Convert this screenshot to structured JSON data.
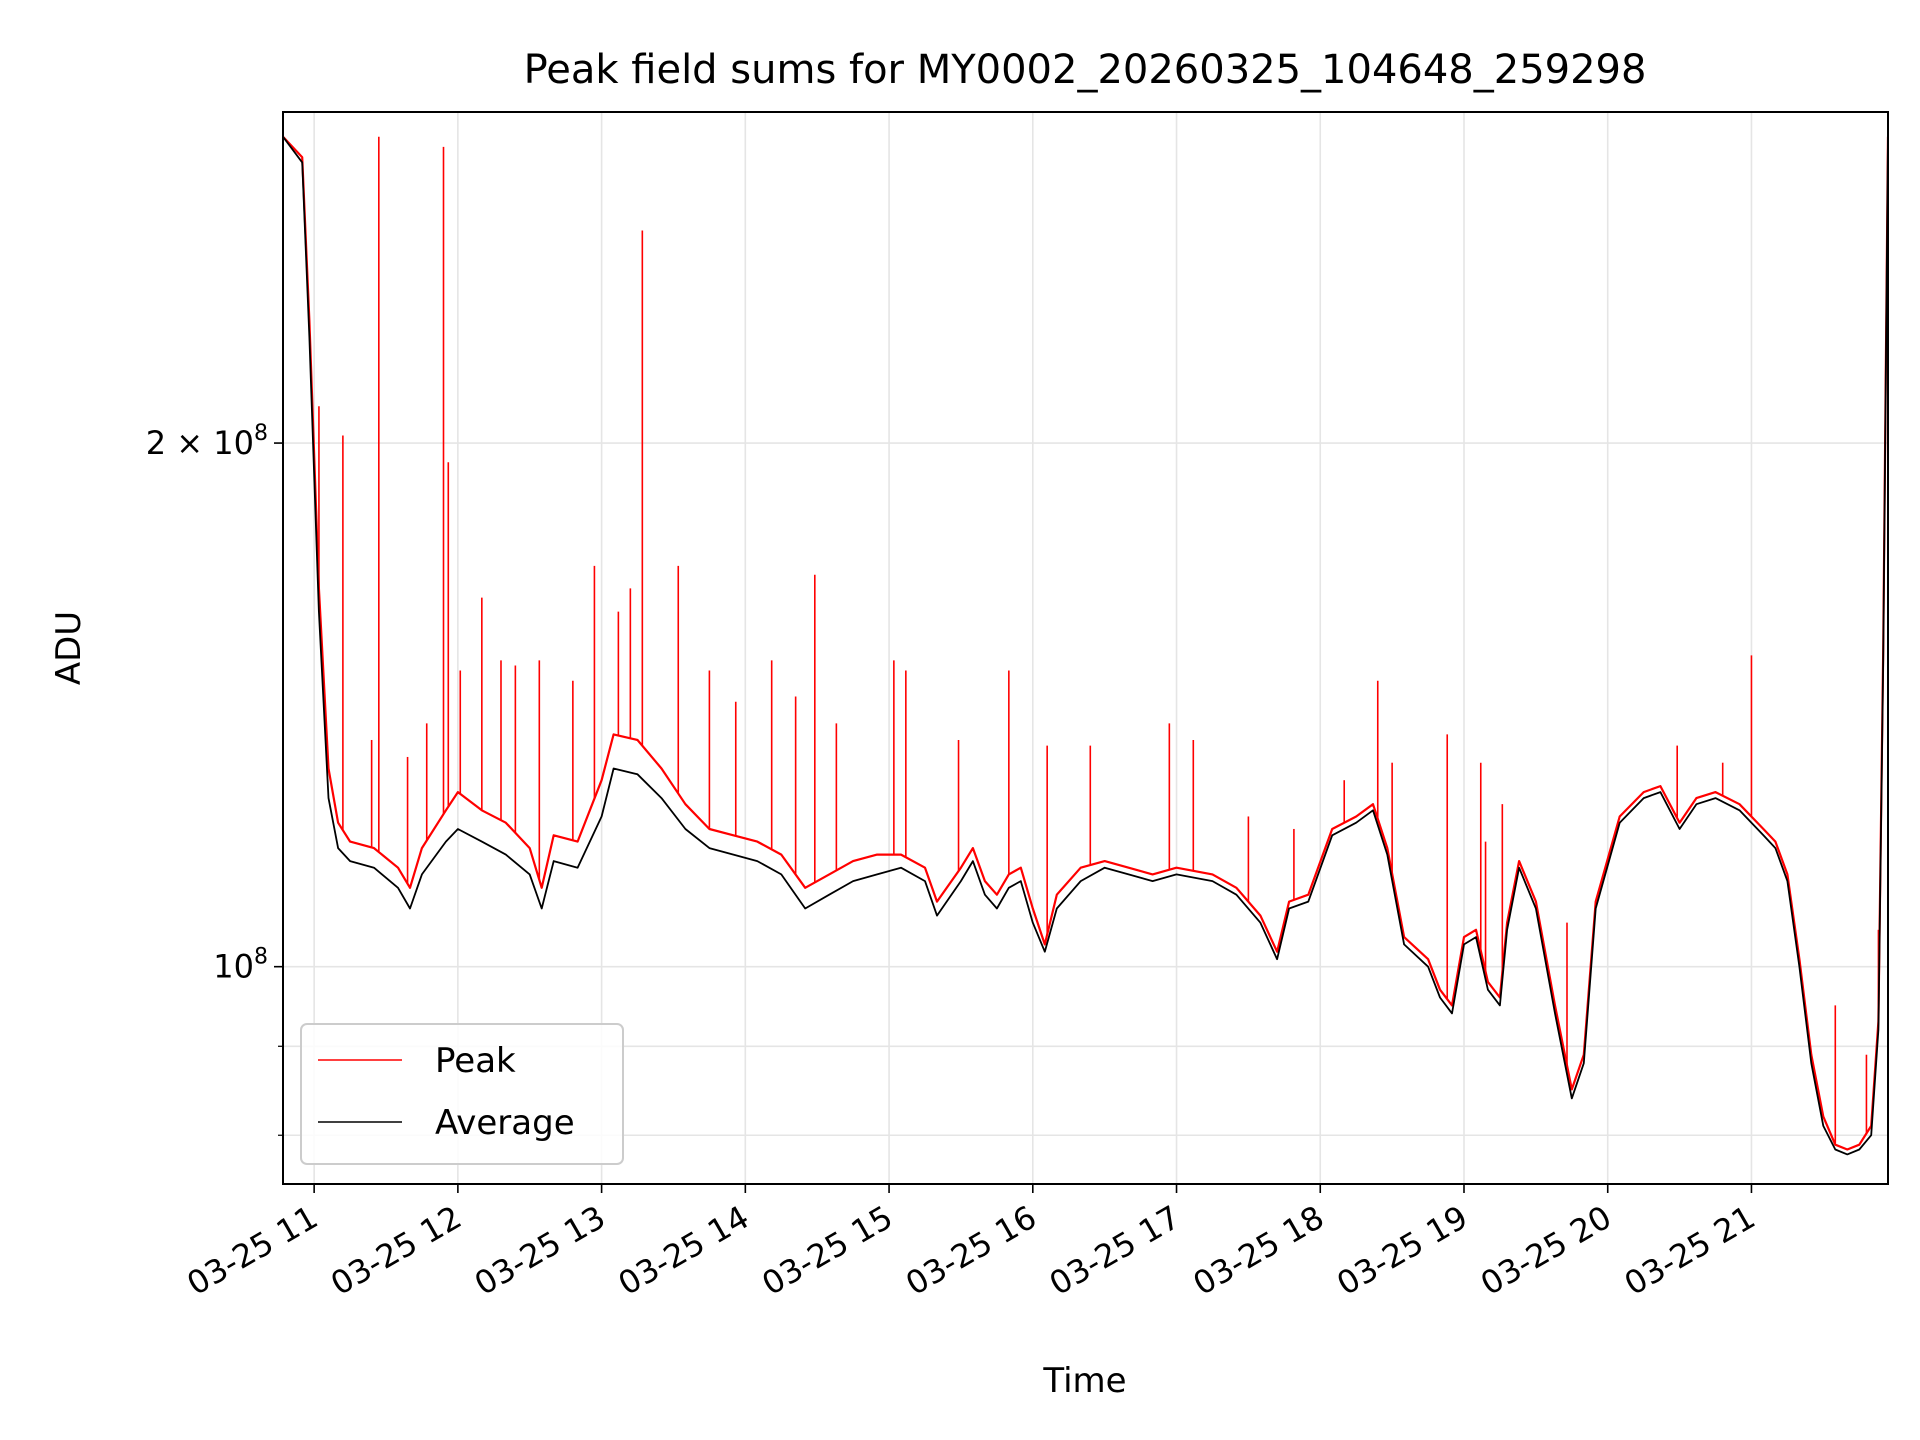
{
  "chart_data": {
    "type": "line",
    "title": "Peak field sums for MY0002_20260325_104648_259298",
    "xlabel": "Time",
    "ylabel": "ADU",
    "y_scale": "log",
    "ylim": [
      75000000,
      310000000
    ],
    "xlim": [
      "03-25 10:47",
      "03-25 21:57"
    ],
    "grid": true,
    "legend_position": "lower-left",
    "x_ticks": [
      {
        "t": "03-25 11:00",
        "label": "03-25 11"
      },
      {
        "t": "03-25 12:00",
        "label": "03-25 12"
      },
      {
        "t": "03-25 13:00",
        "label": "03-25 13"
      },
      {
        "t": "03-25 14:00",
        "label": "03-25 14"
      },
      {
        "t": "03-25 15:00",
        "label": "03-25 15"
      },
      {
        "t": "03-25 16:00",
        "label": "03-25 16"
      },
      {
        "t": "03-25 17:00",
        "label": "03-25 17"
      },
      {
        "t": "03-25 18:00",
        "label": "03-25 18"
      },
      {
        "t": "03-25 19:00",
        "label": "03-25 19"
      },
      {
        "t": "03-25 20:00",
        "label": "03-25 20"
      },
      {
        "t": "03-25 21:00",
        "label": "03-25 21"
      }
    ],
    "y_ticks": [
      {
        "v": 200000000,
        "label": "2 × 10",
        "exp": "8"
      },
      {
        "v": 100000000,
        "label": "10",
        "exp": "8"
      }
    ],
    "y_minor_ticks": [
      80000000,
      90000000
    ],
    "series": [
      {
        "name": "Average",
        "color": "#000000",
        "points": [
          [
            "03-25 10:47",
            300000000
          ],
          [
            "03-25 10:55",
            290000000
          ],
          [
            "03-25 10:58",
            230000000
          ],
          [
            "03-25 11:02",
            160000000
          ],
          [
            "03-25 11:06",
            125000000
          ],
          [
            "03-25 11:10",
            117000000
          ],
          [
            "03-25 11:15",
            115000000
          ],
          [
            "03-25 11:25",
            114000000
          ],
          [
            "03-25 11:35",
            111000000
          ],
          [
            "03-25 11:40",
            108000000
          ],
          [
            "03-25 11:45",
            113000000
          ],
          [
            "03-25 11:55",
            118000000
          ],
          [
            "03-25 12:00",
            120000000
          ],
          [
            "03-25 12:10",
            118000000
          ],
          [
            "03-25 12:20",
            116000000
          ],
          [
            "03-25 12:30",
            113000000
          ],
          [
            "03-25 12:35",
            108000000
          ],
          [
            "03-25 12:40",
            115000000
          ],
          [
            "03-25 12:50",
            114000000
          ],
          [
            "03-25 13:00",
            122000000
          ],
          [
            "03-25 13:05",
            130000000
          ],
          [
            "03-25 13:15",
            129000000
          ],
          [
            "03-25 13:25",
            125000000
          ],
          [
            "03-25 13:35",
            120000000
          ],
          [
            "03-25 13:45",
            117000000
          ],
          [
            "03-25 13:55",
            116000000
          ],
          [
            "03-25 14:05",
            115000000
          ],
          [
            "03-25 14:15",
            113000000
          ],
          [
            "03-25 14:25",
            108000000
          ],
          [
            "03-25 14:35",
            110000000
          ],
          [
            "03-25 14:45",
            112000000
          ],
          [
            "03-25 14:55",
            113000000
          ],
          [
            "03-25 15:05",
            114000000
          ],
          [
            "03-25 15:15",
            112000000
          ],
          [
            "03-25 15:20",
            107000000
          ],
          [
            "03-25 15:30",
            112000000
          ],
          [
            "03-25 15:35",
            115000000
          ],
          [
            "03-25 15:40",
            110000000
          ],
          [
            "03-25 15:45",
            108000000
          ],
          [
            "03-25 15:50",
            111000000
          ],
          [
            "03-25 15:55",
            112000000
          ],
          [
            "03-25 16:00",
            106000000
          ],
          [
            "03-25 16:05",
            102000000
          ],
          [
            "03-25 16:10",
            108000000
          ],
          [
            "03-25 16:20",
            112000000
          ],
          [
            "03-25 16:30",
            114000000
          ],
          [
            "03-25 16:40",
            113000000
          ],
          [
            "03-25 16:50",
            112000000
          ],
          [
            "03-25 17:00",
            113000000
          ],
          [
            "03-25 17:15",
            112000000
          ],
          [
            "03-25 17:25",
            110000000
          ],
          [
            "03-25 17:35",
            106000000
          ],
          [
            "03-25 17:42",
            101000000
          ],
          [
            "03-25 17:47",
            108000000
          ],
          [
            "03-25 17:55",
            109000000
          ],
          [
            "03-25 18:05",
            119000000
          ],
          [
            "03-25 18:15",
            121000000
          ],
          [
            "03-25 18:22",
            123000000
          ],
          [
            "03-25 18:28",
            116000000
          ],
          [
            "03-25 18:35",
            103000000
          ],
          [
            "03-25 18:45",
            100000000
          ],
          [
            "03-25 18:50",
            96000000
          ],
          [
            "03-25 18:55",
            94000000
          ],
          [
            "03-25 19:00",
            103000000
          ],
          [
            "03-25 19:05",
            104000000
          ],
          [
            "03-25 19:10",
            97000000
          ],
          [
            "03-25 19:15",
            95000000
          ],
          [
            "03-25 19:18",
            105000000
          ],
          [
            "03-25 19:23",
            114000000
          ],
          [
            "03-25 19:30",
            108000000
          ],
          [
            "03-25 19:38",
            94000000
          ],
          [
            "03-25 19:45",
            84000000
          ],
          [
            "03-25 19:50",
            88000000
          ],
          [
            "03-25 19:55",
            108000000
          ],
          [
            "03-25 20:05",
            121000000
          ],
          [
            "03-25 20:15",
            125000000
          ],
          [
            "03-25 20:22",
            126000000
          ],
          [
            "03-25 20:30",
            120000000
          ],
          [
            "03-25 20:37",
            124000000
          ],
          [
            "03-25 20:45",
            125000000
          ],
          [
            "03-25 20:55",
            123000000
          ],
          [
            "03-25 21:05",
            119000000
          ],
          [
            "03-25 21:10",
            117000000
          ],
          [
            "03-25 21:15",
            112000000
          ],
          [
            "03-25 21:20",
            100000000
          ],
          [
            "03-25 21:25",
            88000000
          ],
          [
            "03-25 21:30",
            81000000
          ],
          [
            "03-25 21:35",
            78500000
          ],
          [
            "03-25 21:40",
            78000000
          ],
          [
            "03-25 21:45",
            78500000
          ],
          [
            "03-25 21:50",
            80000000
          ],
          [
            "03-25 21:53",
            92000000
          ],
          [
            "03-25 21:55",
            150000000
          ],
          [
            "03-25 21:57",
            300000000
          ]
        ]
      },
      {
        "name": "Peak",
        "color": "#ff0000",
        "points": [
          [
            "03-25 10:47",
            300000000
          ],
          [
            "03-25 10:55",
            292000000
          ],
          [
            "03-25 10:58",
            235000000
          ],
          [
            "03-25 11:02",
            165000000
          ],
          [
            "03-25 11:06",
            130000000
          ],
          [
            "03-25 11:10",
            121000000
          ],
          [
            "03-25 11:15",
            118000000
          ],
          [
            "03-25 11:25",
            117000000
          ],
          [
            "03-25 11:35",
            114000000
          ],
          [
            "03-25 11:40",
            111000000
          ],
          [
            "03-25 11:45",
            117000000
          ],
          [
            "03-25 11:55",
            123000000
          ],
          [
            "03-25 12:00",
            126000000
          ],
          [
            "03-25 12:10",
            123000000
          ],
          [
            "03-25 12:20",
            121000000
          ],
          [
            "03-25 12:30",
            117000000
          ],
          [
            "03-25 12:35",
            111000000
          ],
          [
            "03-25 12:40",
            119000000
          ],
          [
            "03-25 12:50",
            118000000
          ],
          [
            "03-25 13:00",
            128000000
          ],
          [
            "03-25 13:05",
            136000000
          ],
          [
            "03-25 13:15",
            135000000
          ],
          [
            "03-25 13:25",
            130000000
          ],
          [
            "03-25 13:35",
            124000000
          ],
          [
            "03-25 13:45",
            120000000
          ],
          [
            "03-25 13:55",
            119000000
          ],
          [
            "03-25 14:05",
            118000000
          ],
          [
            "03-25 14:15",
            116000000
          ],
          [
            "03-25 14:25",
            111000000
          ],
          [
            "03-25 14:35",
            113000000
          ],
          [
            "03-25 14:45",
            115000000
          ],
          [
            "03-25 14:55",
            116000000
          ],
          [
            "03-25 15:05",
            116000000
          ],
          [
            "03-25 15:15",
            114000000
          ],
          [
            "03-25 15:20",
            109000000
          ],
          [
            "03-25 15:30",
            114000000
          ],
          [
            "03-25 15:35",
            117000000
          ],
          [
            "03-25 15:40",
            112000000
          ],
          [
            "03-25 15:45",
            110000000
          ],
          [
            "03-25 15:50",
            113000000
          ],
          [
            "03-25 15:55",
            114000000
          ],
          [
            "03-25 16:00",
            108000000
          ],
          [
            "03-25 16:05",
            103000000
          ],
          [
            "03-25 16:10",
            110000000
          ],
          [
            "03-25 16:20",
            114000000
          ],
          [
            "03-25 16:30",
            115000000
          ],
          [
            "03-25 16:40",
            114000000
          ],
          [
            "03-25 16:50",
            113000000
          ],
          [
            "03-25 17:00",
            114000000
          ],
          [
            "03-25 17:15",
            113000000
          ],
          [
            "03-25 17:25",
            111000000
          ],
          [
            "03-25 17:35",
            107000000
          ],
          [
            "03-25 17:42",
            102000000
          ],
          [
            "03-25 17:47",
            109000000
          ],
          [
            "03-25 17:55",
            110000000
          ],
          [
            "03-25 18:05",
            120000000
          ],
          [
            "03-25 18:15",
            122000000
          ],
          [
            "03-25 18:22",
            124000000
          ],
          [
            "03-25 18:28",
            117000000
          ],
          [
            "03-25 18:35",
            104000000
          ],
          [
            "03-25 18:45",
            101000000
          ],
          [
            "03-25 18:50",
            97000000
          ],
          [
            "03-25 18:55",
            95000000
          ],
          [
            "03-25 19:00",
            104000000
          ],
          [
            "03-25 19:05",
            105000000
          ],
          [
            "03-25 19:10",
            98000000
          ],
          [
            "03-25 19:15",
            96000000
          ],
          [
            "03-25 19:18",
            106000000
          ],
          [
            "03-25 19:23",
            115000000
          ],
          [
            "03-25 19:30",
            109000000
          ],
          [
            "03-25 19:38",
            95000000
          ],
          [
            "03-25 19:45",
            85000000
          ],
          [
            "03-25 19:50",
            89000000
          ],
          [
            "03-25 19:55",
            109000000
          ],
          [
            "03-25 20:05",
            122000000
          ],
          [
            "03-25 20:15",
            126000000
          ],
          [
            "03-25 20:22",
            127000000
          ],
          [
            "03-25 20:30",
            121000000
          ],
          [
            "03-25 20:37",
            125000000
          ],
          [
            "03-25 20:45",
            126000000
          ],
          [
            "03-25 20:55",
            124000000
          ],
          [
            "03-25 21:05",
            120000000
          ],
          [
            "03-25 21:10",
            118000000
          ],
          [
            "03-25 21:15",
            113000000
          ],
          [
            "03-25 21:20",
            101000000
          ],
          [
            "03-25 21:25",
            89000000
          ],
          [
            "03-25 21:30",
            82000000
          ],
          [
            "03-25 21:35",
            79000000
          ],
          [
            "03-25 21:40",
            78500000
          ],
          [
            "03-25 21:45",
            79000000
          ],
          [
            "03-25 21:50",
            81000000
          ],
          [
            "03-25 21:53",
            93000000
          ],
          [
            "03-25 21:55",
            152000000
          ],
          [
            "03-25 21:57",
            300000000
          ]
        ],
        "spikes": [
          [
            "03-25 11:02",
            210000000
          ],
          [
            "03-25 11:12",
            202000000
          ],
          [
            "03-25 11:24",
            135000000
          ],
          [
            "03-25 11:27",
            300000000
          ],
          [
            "03-25 11:39",
            132000000
          ],
          [
            "03-25 11:47",
            138000000
          ],
          [
            "03-25 11:54",
            296000000
          ],
          [
            "03-25 11:56",
            195000000
          ],
          [
            "03-25 12:01",
            148000000
          ],
          [
            "03-25 12:10",
            163000000
          ],
          [
            "03-25 12:18",
            150000000
          ],
          [
            "03-25 12:24",
            149000000
          ],
          [
            "03-25 12:34",
            150000000
          ],
          [
            "03-25 12:48",
            146000000
          ],
          [
            "03-25 12:57",
            170000000
          ],
          [
            "03-25 13:07",
            160000000
          ],
          [
            "03-25 13:12",
            165000000
          ],
          [
            "03-25 13:17",
            265000000
          ],
          [
            "03-25 13:32",
            170000000
          ],
          [
            "03-25 13:45",
            148000000
          ],
          [
            "03-25 13:56",
            142000000
          ],
          [
            "03-25 14:11",
            150000000
          ],
          [
            "03-25 14:21",
            143000000
          ],
          [
            "03-25 14:29",
            168000000
          ],
          [
            "03-25 14:38",
            138000000
          ],
          [
            "03-25 15:02",
            150000000
          ],
          [
            "03-25 15:07",
            148000000
          ],
          [
            "03-25 15:29",
            135000000
          ],
          [
            "03-25 15:50",
            148000000
          ],
          [
            "03-25 16:06",
            134000000
          ],
          [
            "03-25 16:24",
            134000000
          ],
          [
            "03-25 16:57",
            138000000
          ],
          [
            "03-25 17:07",
            135000000
          ],
          [
            "03-25 17:30",
            122000000
          ],
          [
            "03-25 17:49",
            120000000
          ],
          [
            "03-25 18:10",
            128000000
          ],
          [
            "03-25 18:24",
            146000000
          ],
          [
            "03-25 18:30",
            131000000
          ],
          [
            "03-25 18:53",
            136000000
          ],
          [
            "03-25 19:07",
            131000000
          ],
          [
            "03-25 19:09",
            118000000
          ],
          [
            "03-25 19:16",
            124000000
          ],
          [
            "03-25 19:43",
            106000000
          ],
          [
            "03-25 20:29",
            134000000
          ],
          [
            "03-25 20:48",
            131000000
          ],
          [
            "03-25 21:00",
            151000000
          ],
          [
            "03-25 21:35",
            95000000
          ],
          [
            "03-25 21:48",
            89000000
          ],
          [
            "03-25 21:53",
            105000000
          ]
        ]
      }
    ],
    "legend": [
      {
        "name": "Peak",
        "color": "#ff0000"
      },
      {
        "name": "Average",
        "color": "#000000"
      }
    ]
  }
}
